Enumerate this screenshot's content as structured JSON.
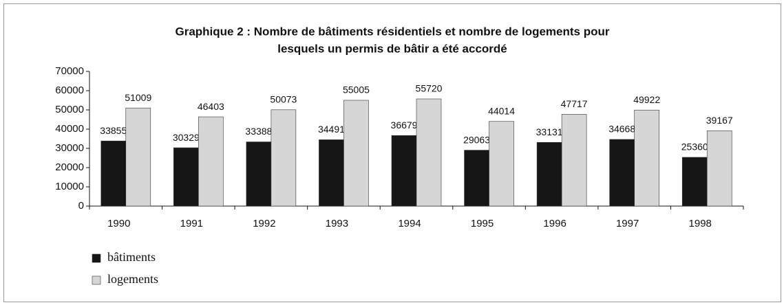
{
  "chart_data": {
    "type": "bar",
    "title_lines": [
      "Graphique 2 : Nombre de bâtiments résidentiels et nombre de logements pour",
      "lesquels un permis de bâtir a été accordé"
    ],
    "categories": [
      "1990",
      "1991",
      "1992",
      "1993",
      "1994",
      "1995",
      "1996",
      "1997",
      "1998"
    ],
    "series": [
      {
        "name": "bâtiments",
        "color": "#161616",
        "values": [
          33855,
          30329,
          33388,
          34491,
          36679,
          29063,
          33131,
          34668,
          25360
        ]
      },
      {
        "name": "logements",
        "color": "#d6d6d6",
        "values": [
          51009,
          46403,
          50073,
          55005,
          55720,
          44014,
          47717,
          49922,
          39167
        ]
      }
    ],
    "ylim": [
      0,
      70000
    ],
    "yticks": [
      0,
      10000,
      20000,
      30000,
      40000,
      50000,
      60000,
      70000
    ],
    "grid": false,
    "legend": "bottom-left"
  }
}
